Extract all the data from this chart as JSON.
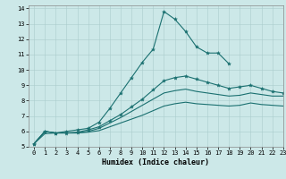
{
  "xlabel": "Humidex (Indice chaleur)",
  "ylabel": "",
  "xlim": [
    -0.5,
    23
  ],
  "ylim": [
    5,
    14.2
  ],
  "xticks": [
    0,
    1,
    2,
    3,
    4,
    5,
    6,
    7,
    8,
    9,
    10,
    11,
    12,
    13,
    14,
    15,
    16,
    17,
    18,
    19,
    20,
    21,
    22,
    23
  ],
  "yticks": [
    5,
    6,
    7,
    8,
    9,
    10,
    11,
    12,
    13,
    14
  ],
  "bg_color": "#cce8e8",
  "grid_color": "#aacccc",
  "line_color": "#1a7070",
  "lines": [
    {
      "x": [
        0,
        1,
        2,
        3,
        4,
        5,
        6,
        7,
        8,
        9,
        10,
        11,
        12,
        13,
        14,
        15,
        16,
        17,
        18
      ],
      "y": [
        5.2,
        6.0,
        5.9,
        6.0,
        6.1,
        6.2,
        6.6,
        7.5,
        8.5,
        9.5,
        10.5,
        11.35,
        13.8,
        13.3,
        12.5,
        11.5,
        11.1,
        11.1,
        10.4
      ],
      "marker": true
    },
    {
      "x": [
        0,
        1,
        2,
        3,
        4,
        5,
        6,
        7,
        8,
        9,
        10,
        11,
        12,
        13,
        14,
        15,
        16,
        17,
        18,
        19,
        20,
        21,
        22,
        23
      ],
      "y": [
        5.2,
        6.0,
        5.9,
        5.9,
        5.95,
        6.1,
        6.3,
        6.7,
        7.1,
        7.6,
        8.1,
        8.7,
        9.3,
        9.5,
        9.6,
        9.4,
        9.2,
        9.0,
        8.8,
        8.9,
        9.0,
        8.8,
        8.6,
        8.5
      ],
      "marker": true
    },
    {
      "x": [
        0,
        1,
        2,
        3,
        4,
        5,
        6,
        7,
        8,
        9,
        10,
        11,
        12,
        13,
        14,
        15,
        16,
        17,
        18,
        19,
        20,
        21,
        22,
        23
      ],
      "y": [
        5.2,
        6.0,
        5.9,
        5.9,
        5.9,
        6.0,
        6.2,
        6.55,
        6.9,
        7.3,
        7.7,
        8.1,
        8.5,
        8.65,
        8.75,
        8.6,
        8.5,
        8.4,
        8.3,
        8.35,
        8.5,
        8.4,
        8.3,
        8.3
      ],
      "marker": false
    },
    {
      "x": [
        0,
        1,
        2,
        3,
        4,
        5,
        6,
        7,
        8,
        9,
        10,
        11,
        12,
        13,
        14,
        15,
        16,
        17,
        18,
        19,
        20,
        21,
        22,
        23
      ],
      "y": [
        5.2,
        5.85,
        5.9,
        5.9,
        5.9,
        5.95,
        6.05,
        6.3,
        6.55,
        6.8,
        7.05,
        7.35,
        7.65,
        7.8,
        7.9,
        7.8,
        7.75,
        7.7,
        7.65,
        7.7,
        7.85,
        7.75,
        7.7,
        7.65
      ],
      "marker": false
    }
  ],
  "tick_fontsize": 5,
  "xlabel_fontsize": 6,
  "xlabel_fontweight": "bold",
  "marker_size": 3,
  "linewidth": 0.8
}
